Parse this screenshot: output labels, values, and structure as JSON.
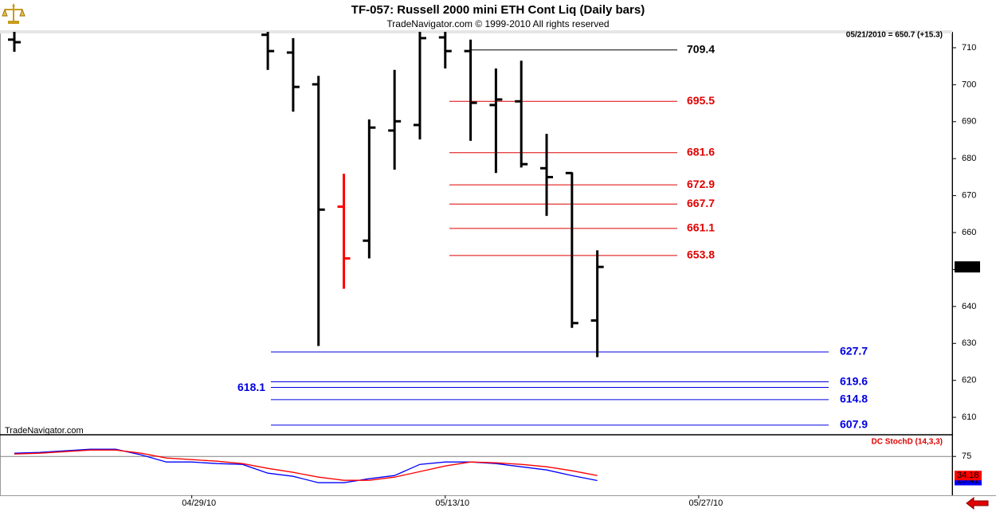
{
  "chart_data": [
    {
      "type": "ohlc",
      "title": "TF-057:  Russell 2000 mini ETH Cont Liq  (Daily bars)",
      "subtitle": "TradeNavigator.com © 1999-2010 All rights reserved",
      "status": "05/21/2010 = 650.7 (+15.3)",
      "watermark": "TradeNavigator.com",
      "x": [
        "04/20/10",
        "04/21/10",
        "04/22/10",
        "04/23/10",
        "04/26/10",
        "04/27/10",
        "04/28/10",
        "04/29/10",
        "04/30/10",
        "05/03/10",
        "05/04/10",
        "05/05/10",
        "05/06/10",
        "05/07/10",
        "05/10/10",
        "05/11/10",
        "05/12/10",
        "05/13/10",
        "05/14/10",
        "05/17/10",
        "05/18/10",
        "05/19/10",
        "05/20/10",
        "05/21/10"
      ],
      "open": [
        712.2,
        null,
        null,
        null,
        null,
        null,
        null,
        null,
        null,
        null,
        713.5,
        708.7,
        700.1,
        667.0,
        657.8,
        687.6,
        689.1,
        712.8,
        709.1,
        694.5,
        695.5,
        677.4,
        676.1,
        636.2
      ],
      "high": [
        715.0,
        null,
        null,
        null,
        null,
        null,
        null,
        null,
        null,
        null,
        715.0,
        712.6,
        702.4,
        675.9,
        690.6,
        704.0,
        714.3,
        715.0,
        712.2,
        704.4,
        706.5,
        686.7,
        676.3,
        655.2
      ],
      "low": [
        708.9,
        null,
        null,
        null,
        null,
        null,
        null,
        null,
        null,
        null,
        704.0,
        692.7,
        629.3,
        644.8,
        653.0,
        677.0,
        685.2,
        704.4,
        684.8,
        676.1,
        677.6,
        664.5,
        634.2,
        626.3
      ],
      "close": [
        711.5,
        null,
        null,
        null,
        null,
        null,
        null,
        null,
        null,
        null,
        709.1,
        699.4,
        666.2,
        653.0,
        688.4,
        690.1,
        712.6,
        709.1,
        695.1,
        696.0,
        678.5,
        675.0,
        635.5,
        650.7
      ],
      "colors": [
        "#000000",
        null,
        null,
        null,
        null,
        null,
        null,
        null,
        null,
        null,
        "#000000",
        "#000000",
        "#000000",
        "#ff0000",
        "#000000",
        "#000000",
        "#000000",
        "#000000",
        "#000000",
        "#000000",
        "#000000",
        "#000000",
        "#000000",
        "#000000"
      ],
      "xlim": [
        "04/20/10",
        "06/10/10"
      ],
      "ylim": [
        605.5,
        714.3
      ],
      "yticks": [
        610,
        620,
        630,
        640,
        650,
        660,
        670,
        680,
        690,
        700,
        710
      ],
      "levels": [
        {
          "color": "#000000",
          "values": [
            709.4
          ],
          "label_sides": [
            "right"
          ]
        },
        {
          "color": "#e00000",
          "values": [
            695.5,
            681.6,
            672.9,
            667.7,
            661.1,
            653.8
          ],
          "label_sides": [
            "right",
            "right",
            "right",
            "right",
            "right",
            "right"
          ]
        },
        {
          "color": "#0000e0",
          "values": [
            627.7,
            619.6,
            618.1,
            614.8,
            607.9
          ],
          "label_sides": [
            "right",
            "right",
            "left",
            "right",
            "right"
          ]
        }
      ]
    },
    {
      "type": "line",
      "title": "DC StochD (14,3,3)",
      "series": [
        {
          "color": "#0000ff",
          "values": [
            81.8,
            83.5,
            86.9,
            90.3,
            90.3,
            78.4,
            63.1,
            63.1,
            59.7,
            58.0,
            39.3,
            32.5,
            18.9,
            18.9,
            27.4,
            34.2,
            58.0,
            63.1,
            63.1,
            59.7,
            52.9,
            46.1,
            34.2,
            23.41
          ]
        },
        {
          "color": "#ff0000",
          "values": [
            80.1,
            81.8,
            85.2,
            88.6,
            88.6,
            81.8,
            71.6,
            68.2,
            64.8,
            59.7,
            49.5,
            41.0,
            30.8,
            24.0,
            24.0,
            30.8,
            42.7,
            54.6,
            63.1,
            61.4,
            58.0,
            52.9,
            44.4,
            34.18
          ]
        }
      ],
      "ylim": [
        -8,
        106
      ],
      "yticks": [
        75
      ],
      "xticks": [
        "04/29/10",
        "05/13/10",
        "05/27/10"
      ]
    }
  ]
}
